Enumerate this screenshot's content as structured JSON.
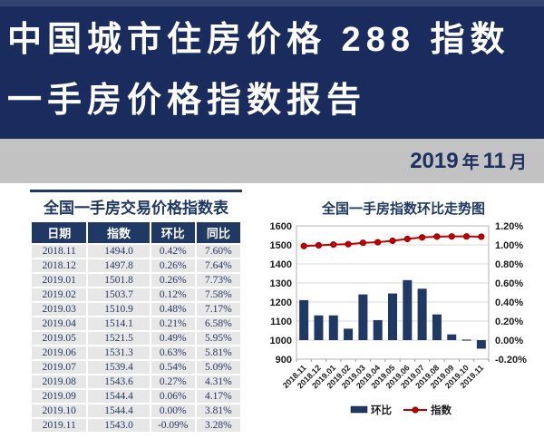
{
  "header": {
    "title_line1": "中国城市住房价格 288 指数",
    "title_line2": "一手房价格指数报告",
    "background": "#1a2c5e",
    "text_color": "#ffffff"
  },
  "date_band": {
    "year": "2019",
    "year_suffix": "年",
    "month": "11",
    "month_suffix": "月",
    "background": "#c2c2c2",
    "text_color": "#1b3160"
  },
  "table": {
    "title": "全国一手房交易价格指数表",
    "columns": [
      "日期",
      "指数",
      "环比",
      "同比"
    ],
    "rows": [
      [
        "2018.11",
        "1494.0",
        "0.42%",
        "7.60%"
      ],
      [
        "2018.12",
        "1497.8",
        "0.26%",
        "7.64%"
      ],
      [
        "2019.01",
        "1501.8",
        "0.26%",
        "7.73%"
      ],
      [
        "2019.02",
        "1503.7",
        "0.12%",
        "7.58%"
      ],
      [
        "2019.03",
        "1510.9",
        "0.48%",
        "7.17%"
      ],
      [
        "2019.04",
        "1514.1",
        "0.21%",
        "6.58%"
      ],
      [
        "2019.05",
        "1521.5",
        "0.49%",
        "5.95%"
      ],
      [
        "2019.06",
        "1531.3",
        "0.63%",
        "5.81%"
      ],
      [
        "2019.07",
        "1539.4",
        "0.54%",
        "5.09%"
      ],
      [
        "2019.08",
        "1543.6",
        "0.27%",
        "4.31%"
      ],
      [
        "2019.09",
        "1544.4",
        "0.06%",
        "4.17%"
      ],
      [
        "2019.10",
        "1544.4",
        "0.00%",
        "3.81%"
      ],
      [
        "2019.11",
        "1543.0",
        "-0.09%",
        "3.28%"
      ]
    ],
    "header_bg": "#1f3864",
    "row_bg": "#e7e7e7"
  },
  "chart_data": {
    "type": "bar",
    "title": "全国一手房指数环比走势图",
    "categories": [
      "2018.11",
      "2018.12",
      "2019.01",
      "2019.02",
      "2019.03",
      "2019.04",
      "2019.05",
      "2019.06",
      "2019.07",
      "2019.08",
      "2019.09",
      "2019.10",
      "2019.11"
    ],
    "series": [
      {
        "name": "环比",
        "type": "bar",
        "axis": "right",
        "unit": "%",
        "color": "#1f3864",
        "values": [
          0.42,
          0.26,
          0.26,
          0.12,
          0.48,
          0.21,
          0.49,
          0.63,
          0.54,
          0.27,
          0.06,
          0.0,
          -0.09
        ]
      },
      {
        "name": "指数",
        "type": "line",
        "axis": "left",
        "color": "#c00000",
        "values": [
          1494.0,
          1497.8,
          1501.8,
          1503.7,
          1510.9,
          1514.1,
          1521.5,
          1531.3,
          1539.4,
          1543.6,
          1544.4,
          1544.4,
          1543.0
        ]
      }
    ],
    "left_axis": {
      "min": 900,
      "max": 1600,
      "step": 100
    },
    "right_axis": {
      "min": -0.2,
      "max": 1.2,
      "step": 0.2,
      "format": "percent"
    },
    "grid": true,
    "legend_position": "bottom"
  }
}
